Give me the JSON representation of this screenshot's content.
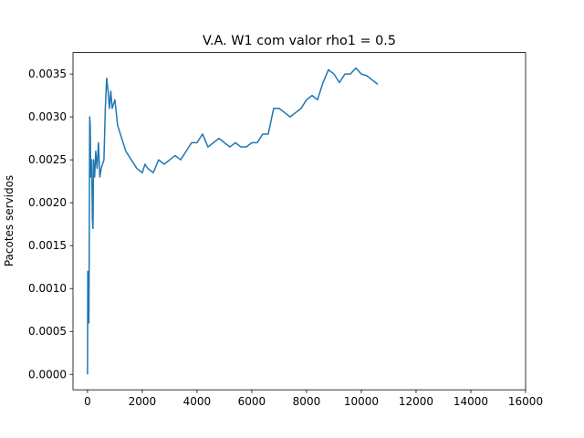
{
  "chart_data": {
    "type": "line",
    "title": "V.A. W1 com valor rho1 = 0.5",
    "y_label": "Pacotes servidos",
    "x": [
      0,
      10,
      30,
      50,
      60,
      80,
      100,
      120,
      150,
      180,
      200,
      220,
      260,
      300,
      350,
      400,
      450,
      500,
      600,
      650,
      700,
      750,
      800,
      850,
      900,
      1000,
      1100,
      1200,
      1400,
      1600,
      1800,
      2000,
      2100,
      2200,
      2400,
      2600,
      2800,
      3000,
      3200,
      3400,
      3600,
      3800,
      4000,
      4200,
      4400,
      4600,
      4800,
      5000,
      5200,
      5400,
      5600,
      5800,
      6000,
      6200,
      6400,
      6600,
      6800,
      7000,
      7200,
      7400,
      7600,
      7800,
      8000,
      8200,
      8400,
      8600,
      8800,
      9000,
      9200,
      9400,
      9600,
      9800,
      10000,
      10200,
      10400,
      10600
    ],
    "series": [
      {
        "name": "W1",
        "color": "#1f77b4",
        "values": [
          0,
          0.0012,
          0.0008,
          0.0006,
          0.0012,
          0.003,
          0.0029,
          0.0023,
          0.0025,
          0.0018,
          0.0017,
          0.0025,
          0.0023,
          0.0026,
          0.0024,
          0.0027,
          0.0023,
          0.0024,
          0.0025,
          0.0031,
          0.00345,
          0.0033,
          0.0031,
          0.0033,
          0.0031,
          0.0032,
          0.0029,
          0.0028,
          0.0026,
          0.0025,
          0.0024,
          0.00235,
          0.00245,
          0.0024,
          0.00235,
          0.0025,
          0.00245,
          0.0025,
          0.00255,
          0.0025,
          0.0026,
          0.0027,
          0.0027,
          0.0028,
          0.00265,
          0.0027,
          0.00275,
          0.0027,
          0.00265,
          0.0027,
          0.00265,
          0.00265,
          0.0027,
          0.0027,
          0.0028,
          0.0028,
          0.0031,
          0.0031,
          0.00305,
          0.003,
          0.00305,
          0.0031,
          0.0032,
          0.00325,
          0.0032,
          0.0034,
          0.00355,
          0.0035,
          0.0034,
          0.0035,
          0.0035,
          0.00357,
          0.0035,
          0.00348,
          0.00343,
          0.00338
        ]
      }
    ],
    "xlim": [
      -530,
      16000
    ],
    "ylim": [
      -0.00018,
      0.00375
    ],
    "xticks": [
      0,
      2000,
      4000,
      6000,
      8000,
      10000,
      12000,
      14000,
      16000
    ],
    "yticks": [
      {
        "value": 0,
        "label": "0.0000"
      },
      {
        "value": 0.0005,
        "label": "0.0005"
      },
      {
        "value": 0.001,
        "label": "0.0010"
      },
      {
        "value": 0.0015,
        "label": "0.0015"
      },
      {
        "value": 0.002,
        "label": "0.0020"
      },
      {
        "value": 0.0025,
        "label": "0.0025"
      },
      {
        "value": 0.003,
        "label": "0.0030"
      },
      {
        "value": 0.0035,
        "label": "0.0035"
      }
    ]
  }
}
